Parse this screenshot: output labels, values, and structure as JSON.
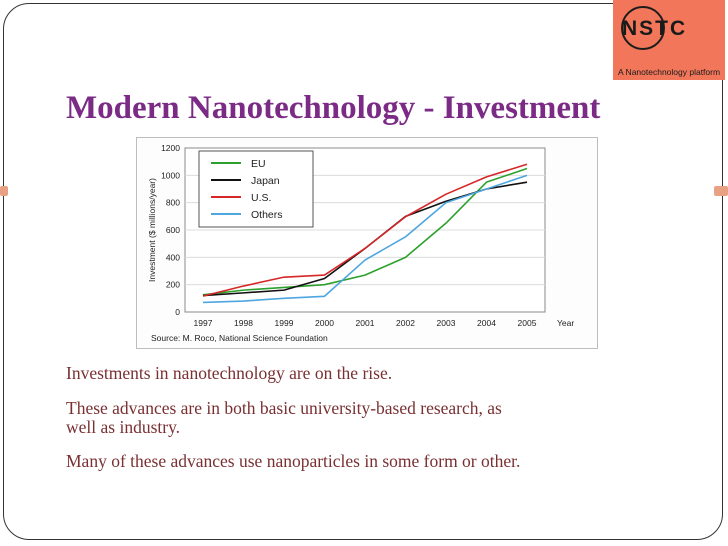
{
  "slide": {
    "title": "Modern Nanotechnology - Investment",
    "paragraphs": [
      "Investments in nanotechnology are on the rise.",
      "These advances are in both basic university-based research, as well as industry.",
      "Many of these advances use nanoparticles in some form or other."
    ]
  },
  "logo": {
    "text": "NSTC",
    "tagline": "A Nanotechnology platform"
  },
  "colors": {
    "title": "#7b2b85",
    "body_text": "#7a2f31",
    "accent": "#e8a283",
    "logo_bg": "#f2775a"
  },
  "chart_data": {
    "type": "line",
    "x": [
      "1997",
      "1998",
      "1999",
      "2000",
      "2001",
      "2002",
      "2003",
      "2004",
      "2005"
    ],
    "x_axis_title": "Year",
    "ylabel": "Investment ($ millions/year)",
    "ylim": [
      0,
      1200
    ],
    "yticks": [
      "0",
      "200",
      "400",
      "600",
      "800",
      "1000",
      "1200"
    ],
    "source": "Source: M. Roco, National Science Foundation",
    "legend_position": "top-left",
    "series": [
      {
        "name": "EU",
        "color": "#2ca02c",
        "values": [
          126,
          160,
          180,
          200,
          270,
          400,
          650,
          950,
          1050
        ]
      },
      {
        "name": "Japan",
        "color": "#111111",
        "values": [
          120,
          140,
          160,
          245,
          465,
          700,
          810,
          900,
          950
        ]
      },
      {
        "name": "U.S.",
        "color": "#d62728",
        "values": [
          116,
          190,
          255,
          270,
          465,
          697,
          862,
          989,
          1081
        ]
      },
      {
        "name": "Others",
        "color": "#4da6e0",
        "values": [
          70,
          80,
          100,
          115,
          380,
          550,
          800,
          900,
          1000
        ]
      }
    ]
  }
}
